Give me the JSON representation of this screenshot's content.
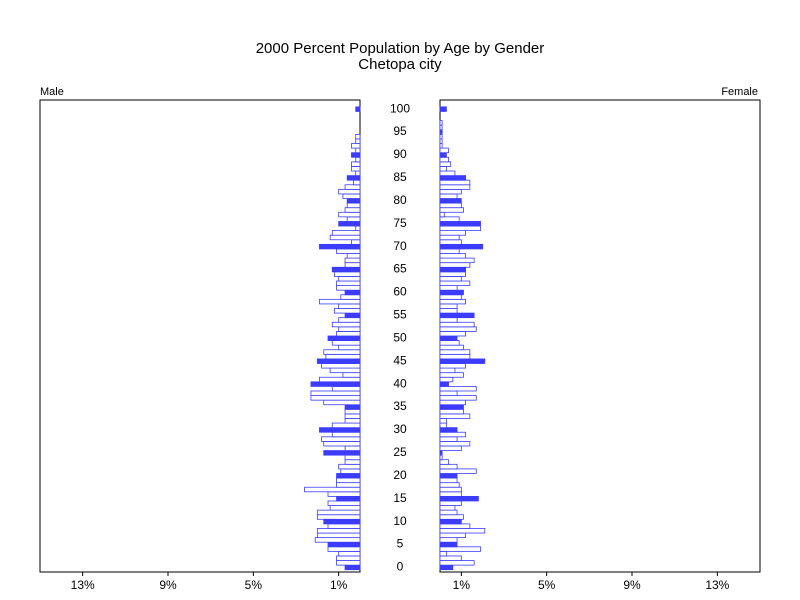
{
  "chart_data": {
    "type": "pyramid",
    "title": "2000 Percent Population by Age by Gender",
    "subtitle": "Chetopa city",
    "y": [
      0,
      1,
      2,
      3,
      4,
      5,
      6,
      7,
      8,
      9,
      10,
      11,
      12,
      13,
      14,
      15,
      16,
      17,
      18,
      19,
      20,
      21,
      22,
      23,
      24,
      25,
      26,
      27,
      28,
      29,
      30,
      31,
      32,
      33,
      34,
      35,
      36,
      37,
      38,
      39,
      40,
      41,
      42,
      43,
      44,
      45,
      46,
      47,
      48,
      49,
      50,
      51,
      52,
      53,
      54,
      55,
      56,
      57,
      58,
      59,
      60,
      61,
      62,
      63,
      64,
      65,
      66,
      67,
      68,
      69,
      70,
      71,
      72,
      73,
      74,
      75,
      76,
      77,
      78,
      79,
      80,
      81,
      82,
      83,
      84,
      85,
      86,
      87,
      88,
      89,
      90,
      91,
      92,
      93,
      94,
      95,
      96,
      97,
      98,
      99,
      100
    ],
    "series": [
      {
        "name": "Male",
        "color": "#3c3cff",
        "values": [
          0.7,
          1.1,
          1.1,
          1.0,
          1.5,
          1.5,
          2.1,
          2.0,
          2.0,
          1.5,
          1.7,
          2.0,
          2.0,
          1.4,
          1.5,
          1.1,
          1.5,
          2.6,
          1.1,
          1.1,
          1.1,
          0.9,
          1.0,
          0.7,
          0.7,
          1.7,
          0.7,
          1.7,
          1.8,
          1.3,
          1.9,
          1.3,
          0.7,
          0.7,
          0.7,
          0.7,
          1.7,
          2.3,
          2.3,
          1.3,
          2.3,
          1.9,
          0.8,
          1.4,
          1.8,
          2.0,
          1.6,
          1.7,
          1.0,
          1.3,
          1.5,
          1.1,
          1.0,
          1.3,
          1.0,
          0.7,
          1.2,
          1.0,
          1.9,
          0.9,
          0.7,
          1.1,
          1.1,
          1.0,
          1.2,
          1.3,
          0.7,
          0.7,
          0.6,
          1.1,
          1.9,
          0.4,
          1.4,
          1.3,
          0.2,
          1.0,
          0.6,
          1.0,
          0.7,
          0.6,
          0.6,
          0.8,
          1.0,
          0.7,
          0.3,
          0.6,
          0.2,
          0.4,
          0.4,
          0.2,
          0.4,
          0.2,
          0.4,
          0.2,
          0.2,
          0,
          0,
          0,
          0,
          0,
          0.2
        ]
      },
      {
        "name": "Female",
        "color": "#3c3cff",
        "values": [
          0.6,
          1.6,
          1.0,
          0.3,
          1.9,
          0.8,
          0.8,
          1.2,
          2.1,
          1.4,
          1.0,
          1.1,
          0.8,
          0.7,
          1.0,
          1.8,
          1.0,
          1.0,
          0.9,
          0.8,
          0.8,
          1.7,
          0.8,
          0.4,
          0.1,
          0.1,
          1.0,
          1.4,
          0.8,
          1.2,
          0.8,
          0.3,
          0.3,
          1.4,
          1.1,
          1.1,
          1.2,
          1.7,
          0.8,
          1.7,
          0.4,
          0.6,
          1.1,
          0.7,
          1.2,
          2.1,
          1.4,
          1.4,
          1.1,
          0.9,
          0.8,
          1.2,
          1.7,
          1.6,
          0.8,
          1.6,
          0.8,
          0.8,
          1.2,
          1.0,
          1.1,
          0.8,
          1.4,
          1.0,
          1.2,
          1.2,
          1.4,
          1.6,
          1.2,
          0.9,
          2.0,
          1.0,
          0.9,
          1.2,
          1.9,
          1.9,
          0.9,
          0.2,
          1.1,
          1.0,
          1.0,
          0.8,
          1.0,
          1.4,
          1.4,
          1.2,
          0.7,
          0.3,
          0.5,
          0.4,
          0.3,
          0.4,
          0.1,
          0.1,
          0.1,
          0.1,
          0.1,
          0.1,
          0,
          0,
          0.3
        ]
      }
    ],
    "xlim": [
      0,
      15
    ],
    "xticks": [
      {
        "value": 13,
        "label": "13%"
      },
      {
        "value": 9,
        "label": "9%"
      },
      {
        "value": 5,
        "label": "5%"
      },
      {
        "value": 1,
        "label": "1%"
      }
    ],
    "ylim": [
      -1,
      102
    ],
    "yticks": [
      0,
      5,
      10,
      15,
      20,
      25,
      30,
      35,
      40,
      45,
      50,
      55,
      60,
      65,
      70,
      75,
      80,
      85,
      90,
      95,
      100
    ]
  }
}
